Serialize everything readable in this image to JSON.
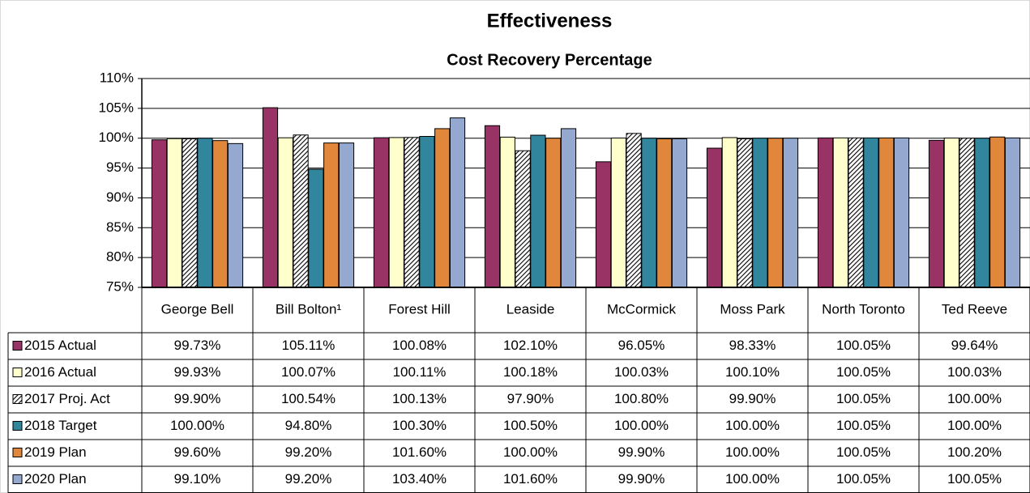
{
  "chart_data": {
    "type": "bar",
    "title": "Effectiveness",
    "subtitle": "Cost Recovery Percentage",
    "categories": [
      "George Bell",
      "Bill Bolton¹",
      "Forest Hill",
      "Leaside",
      "McCormick",
      "Moss Park",
      "North Toronto",
      "Ted Reeve"
    ],
    "series": [
      {
        "name": "2015 Actual",
        "color": "#993366",
        "values": [
          99.73,
          105.11,
          100.08,
          102.1,
          96.05,
          98.33,
          100.05,
          99.64
        ],
        "value_labels": [
          "99.73%",
          "105.11%",
          "100.08%",
          "102.10%",
          "96.05%",
          "98.33%",
          "100.05%",
          "99.64%"
        ]
      },
      {
        "name": "2016 Actual",
        "color": "#FFFFCC",
        "values": [
          99.93,
          100.07,
          100.11,
          100.18,
          100.03,
          100.1,
          100.05,
          100.03
        ],
        "value_labels": [
          "99.93%",
          "100.07%",
          "100.11%",
          "100.18%",
          "100.03%",
          "100.10%",
          "100.05%",
          "100.03%"
        ]
      },
      {
        "name": "2017 Proj. Act",
        "color": "#000000",
        "hatch": true,
        "values": [
          99.9,
          100.54,
          100.13,
          97.9,
          100.8,
          99.9,
          100.05,
          100.0
        ],
        "value_labels": [
          "99.90%",
          "100.54%",
          "100.13%",
          "97.90%",
          "100.80%",
          "99.90%",
          "100.05%",
          "100.00%"
        ]
      },
      {
        "name": "2018 Target",
        "color": "#31859C",
        "values": [
          100.0,
          94.8,
          100.3,
          100.5,
          100.0,
          100.0,
          100.05,
          100.0
        ],
        "value_labels": [
          "100.00%",
          "94.80%",
          "100.30%",
          "100.50%",
          "100.00%",
          "100.00%",
          "100.05%",
          "100.00%"
        ]
      },
      {
        "name": "2019 Plan",
        "color": "#E0873C",
        "values": [
          99.6,
          99.2,
          101.6,
          100.0,
          99.9,
          100.0,
          100.05,
          100.2
        ],
        "value_labels": [
          "99.60%",
          "99.20%",
          "101.60%",
          "100.00%",
          "99.90%",
          "100.00%",
          "100.05%",
          "100.20%"
        ]
      },
      {
        "name": "2020 Plan",
        "color": "#95A9D0",
        "values": [
          99.1,
          99.2,
          103.4,
          101.6,
          99.9,
          100.0,
          100.05,
          100.05
        ],
        "value_labels": [
          "99.10%",
          "99.20%",
          "103.40%",
          "101.60%",
          "99.90%",
          "100.00%",
          "100.05%",
          "100.05%"
        ]
      }
    ],
    "ylim": [
      75,
      110
    ],
    "yticks": [
      {
        "value": 75,
        "label": "75%"
      },
      {
        "value": 80,
        "label": "80%"
      },
      {
        "value": 85,
        "label": "85%"
      },
      {
        "value": 90,
        "label": "90%"
      },
      {
        "value": 95,
        "label": "95%"
      },
      {
        "value": 100,
        "label": "100%"
      },
      {
        "value": 105,
        "label": "105%"
      },
      {
        "value": 110,
        "label": "110%"
      }
    ],
    "grid": true
  }
}
